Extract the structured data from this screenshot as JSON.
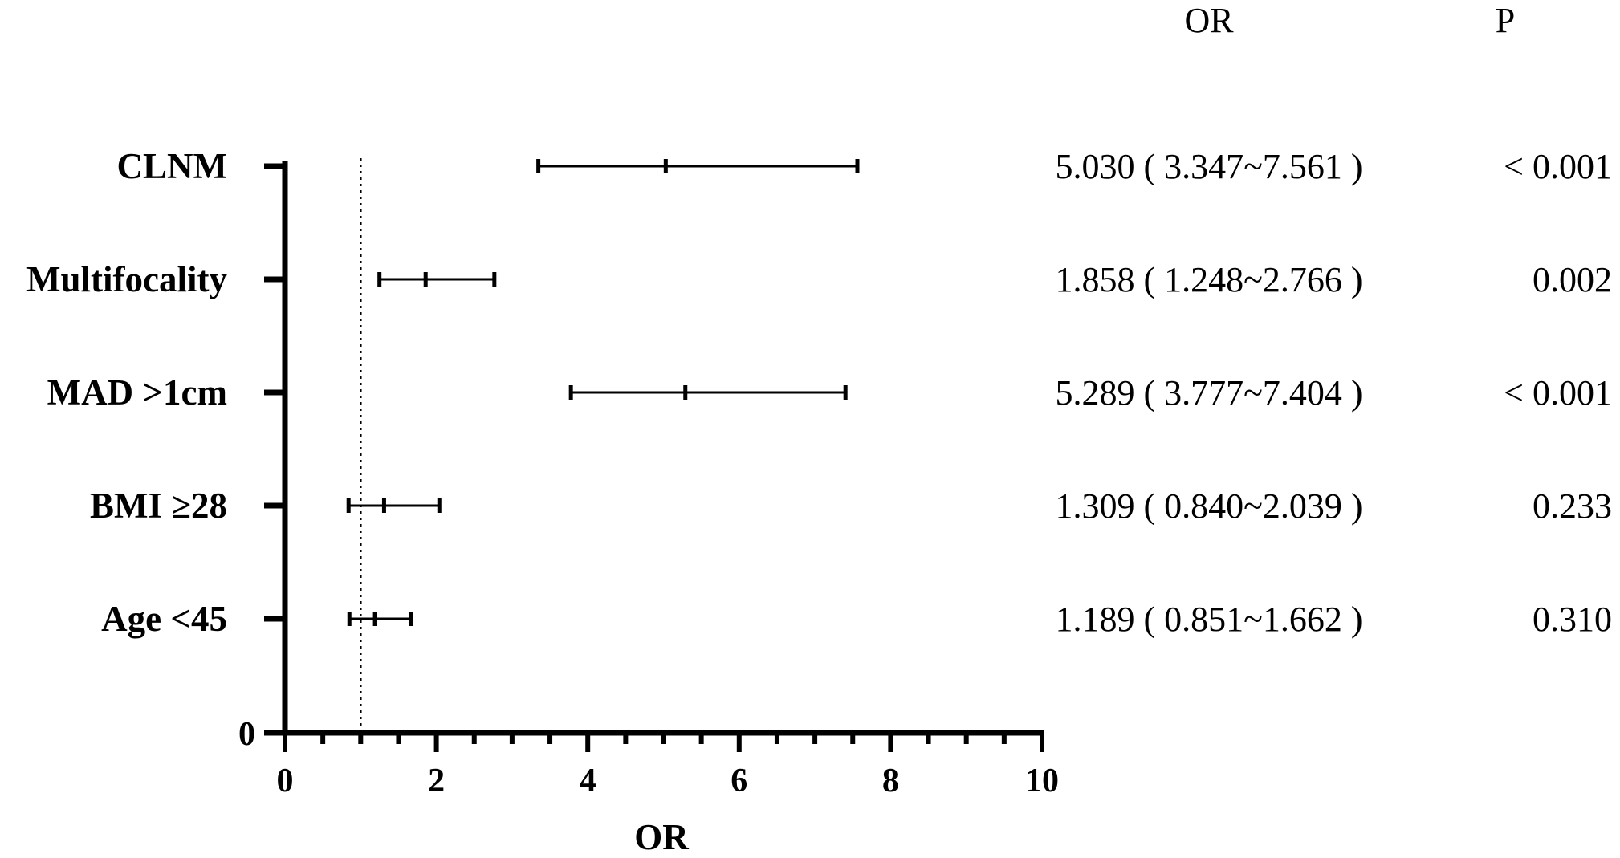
{
  "chart_data": {
    "type": "forest",
    "title": "",
    "xlabel": "OR",
    "ylabel": "",
    "xlim": [
      0,
      10
    ],
    "x_ticks": [
      0,
      2,
      4,
      6,
      8,
      10
    ],
    "y_zero_label": "0",
    "reference_line": 1,
    "grid": false,
    "column_headers": {
      "or": "OR",
      "p": "P"
    },
    "rows": [
      {
        "label": "CLNM",
        "or": 5.03,
        "lower": 3.347,
        "upper": 7.561,
        "or_text": "5.030 ( 3.347~7.561 )",
        "p_text": "< 0.001"
      },
      {
        "label": "Multifocality",
        "or": 1.858,
        "lower": 1.248,
        "upper": 2.766,
        "or_text": "1.858 ( 1.248~2.766 )",
        "p_text": "0.002"
      },
      {
        "label": "MAD >1cm",
        "or": 5.289,
        "lower": 3.777,
        "upper": 7.404,
        "or_text": "5.289 ( 3.777~7.404 )",
        "p_text": "< 0.001"
      },
      {
        "label": "BMI ≥28",
        "or": 1.309,
        "lower": 0.84,
        "upper": 2.039,
        "or_text": "1.309 ( 0.840~2.039 )",
        "p_text": "0.233"
      },
      {
        "label": "Age <45",
        "or": 1.189,
        "lower": 0.851,
        "upper": 1.662,
        "or_text": "1.189 ( 0.851~1.662 )",
        "p_text": "0.310"
      }
    ]
  }
}
